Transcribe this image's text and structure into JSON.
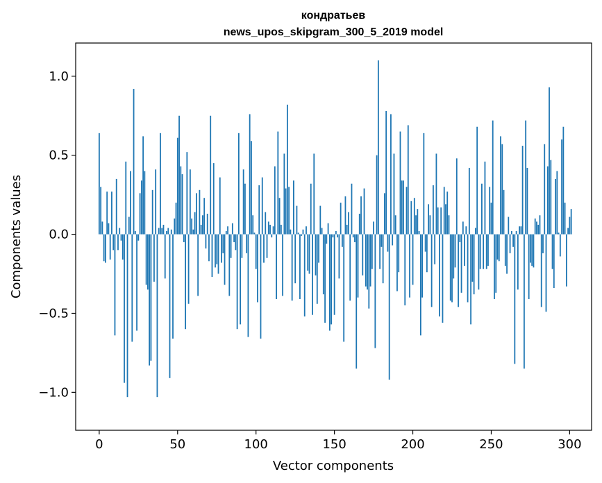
{
  "chart_data": {
    "type": "bar",
    "title": "кондратьев",
    "subtitle": "news_upos_skipgram_300_5_2019 model",
    "xlabel": "Vector components",
    "ylabel": "Components values",
    "xlim": [
      -15,
      314
    ],
    "ylim": [
      -1.24,
      1.21
    ],
    "xticks": [
      0,
      50,
      100,
      150,
      200,
      250,
      300
    ],
    "xtick_labels": [
      "0",
      "50",
      "100",
      "150",
      "200",
      "250",
      "300"
    ],
    "yticks": [
      -1.0,
      -0.5,
      0.0,
      0.5,
      1.0
    ],
    "ytick_labels": [
      "−1.0",
      "−0.5",
      "0.0",
      "0.5",
      "1.0"
    ],
    "grid": false,
    "bar_color": "#1f77b4",
    "values": [
      0.64,
      0.3,
      0.08,
      -0.17,
      -0.18,
      0.27,
      0.07,
      -0.16,
      0.27,
      -0.1,
      -0.64,
      0.35,
      -0.1,
      0.04,
      -0.04,
      -0.16,
      -0.94,
      0.46,
      -1.03,
      0.11,
      0.4,
      -0.68,
      0.92,
      0.02,
      -0.61,
      -0.04,
      0.26,
      0.34,
      0.62,
      0.4,
      -0.32,
      -0.35,
      -0.83,
      -0.8,
      0.28,
      -0.3,
      0.41,
      -1.03,
      0.04,
      0.64,
      0.04,
      0.06,
      -0.28,
      0.02,
      0.04,
      -0.91,
      0.03,
      -0.66,
      0.1,
      0.2,
      0.61,
      0.75,
      0.43,
      0.38,
      -0.05,
      -0.6,
      0.52,
      -0.44,
      0.41,
      0.1,
      0.03,
      0.14,
      0.26,
      -0.39,
      0.28,
      0.06,
      0.12,
      0.23,
      -0.09,
      0.13,
      -0.17,
      0.75,
      -0.27,
      0.45,
      -0.21,
      -0.19,
      -0.25,
      0.36,
      -0.18,
      -0.12,
      -0.32,
      0.02,
      0.05,
      -0.39,
      -0.15,
      0.07,
      -0.05,
      -0.1,
      -0.6,
      0.64,
      -0.57,
      -0.15,
      0.41,
      0.32,
      -0.12,
      -0.65,
      0.76,
      0.59,
      0.12,
      0.01,
      -0.22,
      -0.43,
      0.31,
      -0.66,
      0.36,
      -0.18,
      0.14,
      -0.15,
      0.08,
      0.06,
      -0.02,
      0.05,
      0.43,
      -0.41,
      0.65,
      0.23,
      0.06,
      -0.39,
      0.51,
      0.29,
      0.82,
      0.3,
      0.03,
      -0.42,
      0.34,
      -0.31,
      0.18,
      0.01,
      -0.41,
      -0.01,
      0.03,
      -0.52,
      0.05,
      -0.23,
      -0.25,
      0.32,
      -0.51,
      0.51,
      -0.26,
      -0.44,
      -0.18,
      0.18,
      0.04,
      -0.38,
      -0.56,
      -0.06,
      0.07,
      -0.61,
      -0.57,
      -0.02,
      -0.51,
      0.02,
      -0.02,
      -0.28,
      0.2,
      -0.08,
      -0.68,
      0.24,
      0.06,
      0.14,
      -0.42,
      0.32,
      -0.02,
      -0.05,
      -0.85,
      -0.4,
      0.13,
      0.24,
      -0.26,
      0.29,
      -0.33,
      -0.35,
      -0.47,
      -0.33,
      -0.22,
      0.08,
      -0.72,
      0.5,
      1.1,
      -0.22,
      -0.08,
      -0.31,
      0.26,
      0.78,
      -0.11,
      -0.92,
      0.76,
      -0.07,
      0.51,
      0.12,
      -0.36,
      -0.24,
      0.65,
      0.34,
      0.34,
      -0.45,
      0.3,
      0.69,
      -0.4,
      0.21,
      -0.32,
      0.23,
      0.12,
      0.16,
      0.02,
      -0.64,
      -0.4,
      0.64,
      -0.11,
      -0.24,
      0.19,
      0.12,
      -0.46,
      0.31,
      -0.19,
      0.51,
      0.17,
      -0.52,
      0.17,
      -0.56,
      0.3,
      0.19,
      0.27,
      0.12,
      -0.42,
      -0.43,
      -0.28,
      -0.21,
      0.48,
      -0.46,
      -0.05,
      -0.37,
      0.08,
      -0.2,
      0.05,
      -0.43,
      0.42,
      -0.57,
      -0.3,
      -0.38,
      0.04,
      0.68,
      -0.35,
      -0.22,
      0.32,
      -0.22,
      0.46,
      -0.22,
      -0.2,
      0.3,
      0.2,
      0.72,
      -0.41,
      -0.37,
      -0.16,
      -0.17,
      0.62,
      0.57,
      0.28,
      -0.2,
      -0.25,
      0.11,
      -0.12,
      0.02,
      -0.08,
      -0.82,
      0.02,
      -0.35,
      0.05,
      0.05,
      0.56,
      -0.85,
      0.72,
      0.42,
      -0.41,
      -0.18,
      -0.2,
      -0.21,
      0.1,
      0.08,
      0.06,
      0.12,
      -0.46,
      -0.12,
      0.57,
      -0.49,
      0.43,
      0.93,
      0.47,
      -0.22,
      -0.34,
      0.35,
      0.4,
      0.01,
      -0.14,
      0.6,
      0.68,
      0.2,
      -0.33,
      0.04,
      0.11,
      0.16
    ]
  }
}
